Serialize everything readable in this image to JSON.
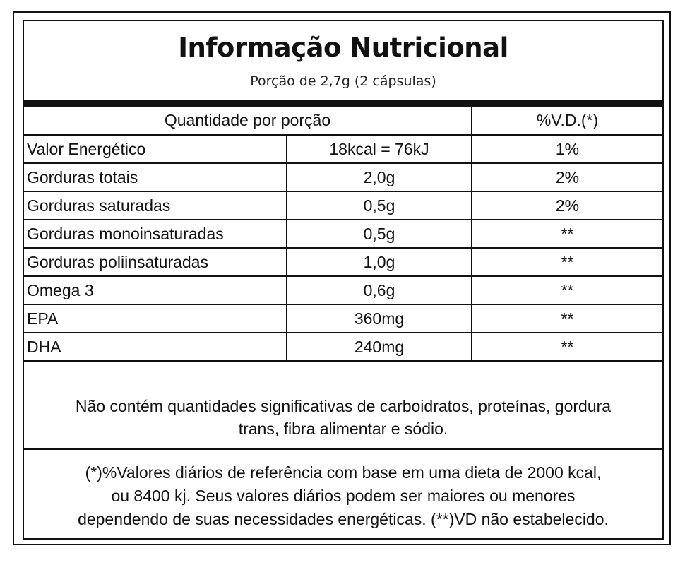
{
  "title": "Informação Nutricional",
  "serving": "Porção de 2,7g (2 cápsulas)",
  "header": {
    "quantity": "Quantidade por porção",
    "dv": "%V.D.(*)"
  },
  "rows": [
    {
      "nutrient": "Valor Energético",
      "amount": "18kcal = 76kJ",
      "dv": "1%"
    },
    {
      "nutrient": "Gorduras totais",
      "amount": "2,0g",
      "dv": "2%"
    },
    {
      "nutrient": "Gorduras saturadas",
      "amount": "0,5g",
      "dv": "2%"
    },
    {
      "nutrient": "Gorduras monoinsaturadas",
      "amount": "0,5g",
      "dv": "**"
    },
    {
      "nutrient": "Gorduras poliinsaturadas",
      "amount": "1,0g",
      "dv": "**"
    },
    {
      "nutrient": "Omega 3",
      "amount": "0,6g",
      "dv": "**"
    },
    {
      "nutrient": "EPA",
      "amount": "360mg",
      "dv": "**"
    },
    {
      "nutrient": "DHA",
      "amount": "240mg",
      "dv": "**"
    }
  ],
  "notes": {
    "insignificant_line1": "Não contém quantidades significativas de carboidratos, proteínas, gordura",
    "insignificant_line2": "trans, fibra alimentar e sódio.",
    "footnote_line1": "(*)%Valores diários de referência com base em uma dieta de 2000 kcal,",
    "footnote_line2": "ou 8400 kj. Seus valores diários podem ser maiores ou menores",
    "footnote_line3": "dependendo de suas necessidades energéticas. (**)VD não estabelecido."
  }
}
